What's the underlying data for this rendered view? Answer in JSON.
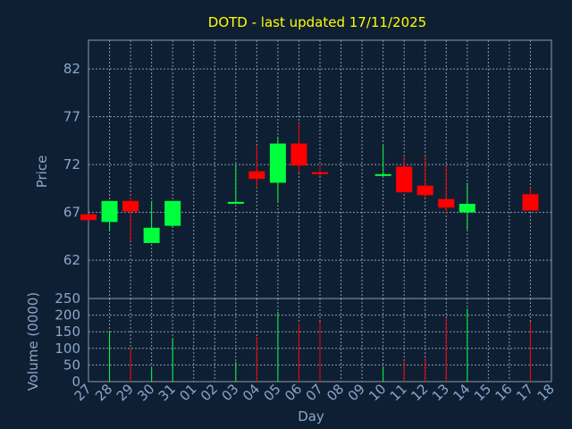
{
  "chart_data": {
    "type": "candlestick",
    "title": "DOTD - last updated 17/11/2025",
    "xlabel": "Day",
    "ylabel": "Price",
    "ylabel_volume": "Volume (0000)",
    "grid": true,
    "colors": {
      "up": "#00ff3c",
      "down": "#ff0000",
      "background": "#0f1f33",
      "title": "#ffff00",
      "text": "#8aa6c8",
      "grid": "#8c99aa"
    },
    "x_tick_labels": [
      "27",
      "28",
      "29",
      "30",
      "31",
      "01",
      "02",
      "03",
      "04",
      "05",
      "06",
      "07",
      "08",
      "09",
      "10",
      "11",
      "12",
      "13",
      "14",
      "15",
      "16",
      "17",
      "18"
    ],
    "price_ylim": [
      58,
      85
    ],
    "price_yticks": [
      62,
      67,
      72,
      77,
      82
    ],
    "volume_ylim": [
      0,
      250
    ],
    "volume_yticks": [
      0,
      50,
      100,
      150,
      200,
      250
    ],
    "candles": [
      {
        "day": "27",
        "open": 66.8,
        "close": 66.2,
        "high": 66.8,
        "low": 66.2,
        "volume": 0
      },
      {
        "day": "28",
        "open": 66.0,
        "close": 68.2,
        "high": 68.2,
        "low": 65.0,
        "volume": 150
      },
      {
        "day": "29",
        "open": 68.2,
        "close": 67.1,
        "high": 68.6,
        "low": 64.0,
        "volume": 100
      },
      {
        "day": "30",
        "open": 63.8,
        "close": 65.4,
        "high": 68.2,
        "low": 63.8,
        "volume": 40
      },
      {
        "day": "31",
        "open": 65.6,
        "close": 68.2,
        "high": 68.2,
        "low": 65.4,
        "volume": 130
      },
      {
        "day": "03",
        "open": 67.9,
        "close": 68.1,
        "high": 72.0,
        "low": 67.9,
        "volume": 60
      },
      {
        "day": "04",
        "open": 71.3,
        "close": 70.5,
        "high": 74.0,
        "low": 69.6,
        "volume": 135
      },
      {
        "day": "05",
        "open": 70.1,
        "close": 74.2,
        "high": 74.9,
        "low": 68.0,
        "volume": 210
      },
      {
        "day": "06",
        "open": 74.2,
        "close": 71.9,
        "high": 76.3,
        "low": 71.2,
        "volume": 175
      },
      {
        "day": "07",
        "open": 71.2,
        "close": 71.0,
        "high": 71.9,
        "low": 70.8,
        "volume": 180
      },
      {
        "day": "10",
        "open": 70.9,
        "close": 71.0,
        "high": 74.0,
        "low": 70.8,
        "volume": 45
      },
      {
        "day": "11",
        "open": 71.8,
        "close": 69.1,
        "high": 72.9,
        "low": 69.1,
        "volume": 60
      },
      {
        "day": "12",
        "open": 69.8,
        "close": 68.8,
        "high": 72.9,
        "low": 68.5,
        "volume": 70
      },
      {
        "day": "13",
        "open": 68.4,
        "close": 67.5,
        "high": 71.9,
        "low": 66.8,
        "volume": 190
      },
      {
        "day": "14",
        "open": 67.0,
        "close": 67.9,
        "high": 70.1,
        "low": 65.2,
        "volume": 220
      },
      {
        "day": "17",
        "open": 68.9,
        "close": 67.2,
        "high": 69.6,
        "low": 67.2,
        "volume": 180
      }
    ]
  }
}
